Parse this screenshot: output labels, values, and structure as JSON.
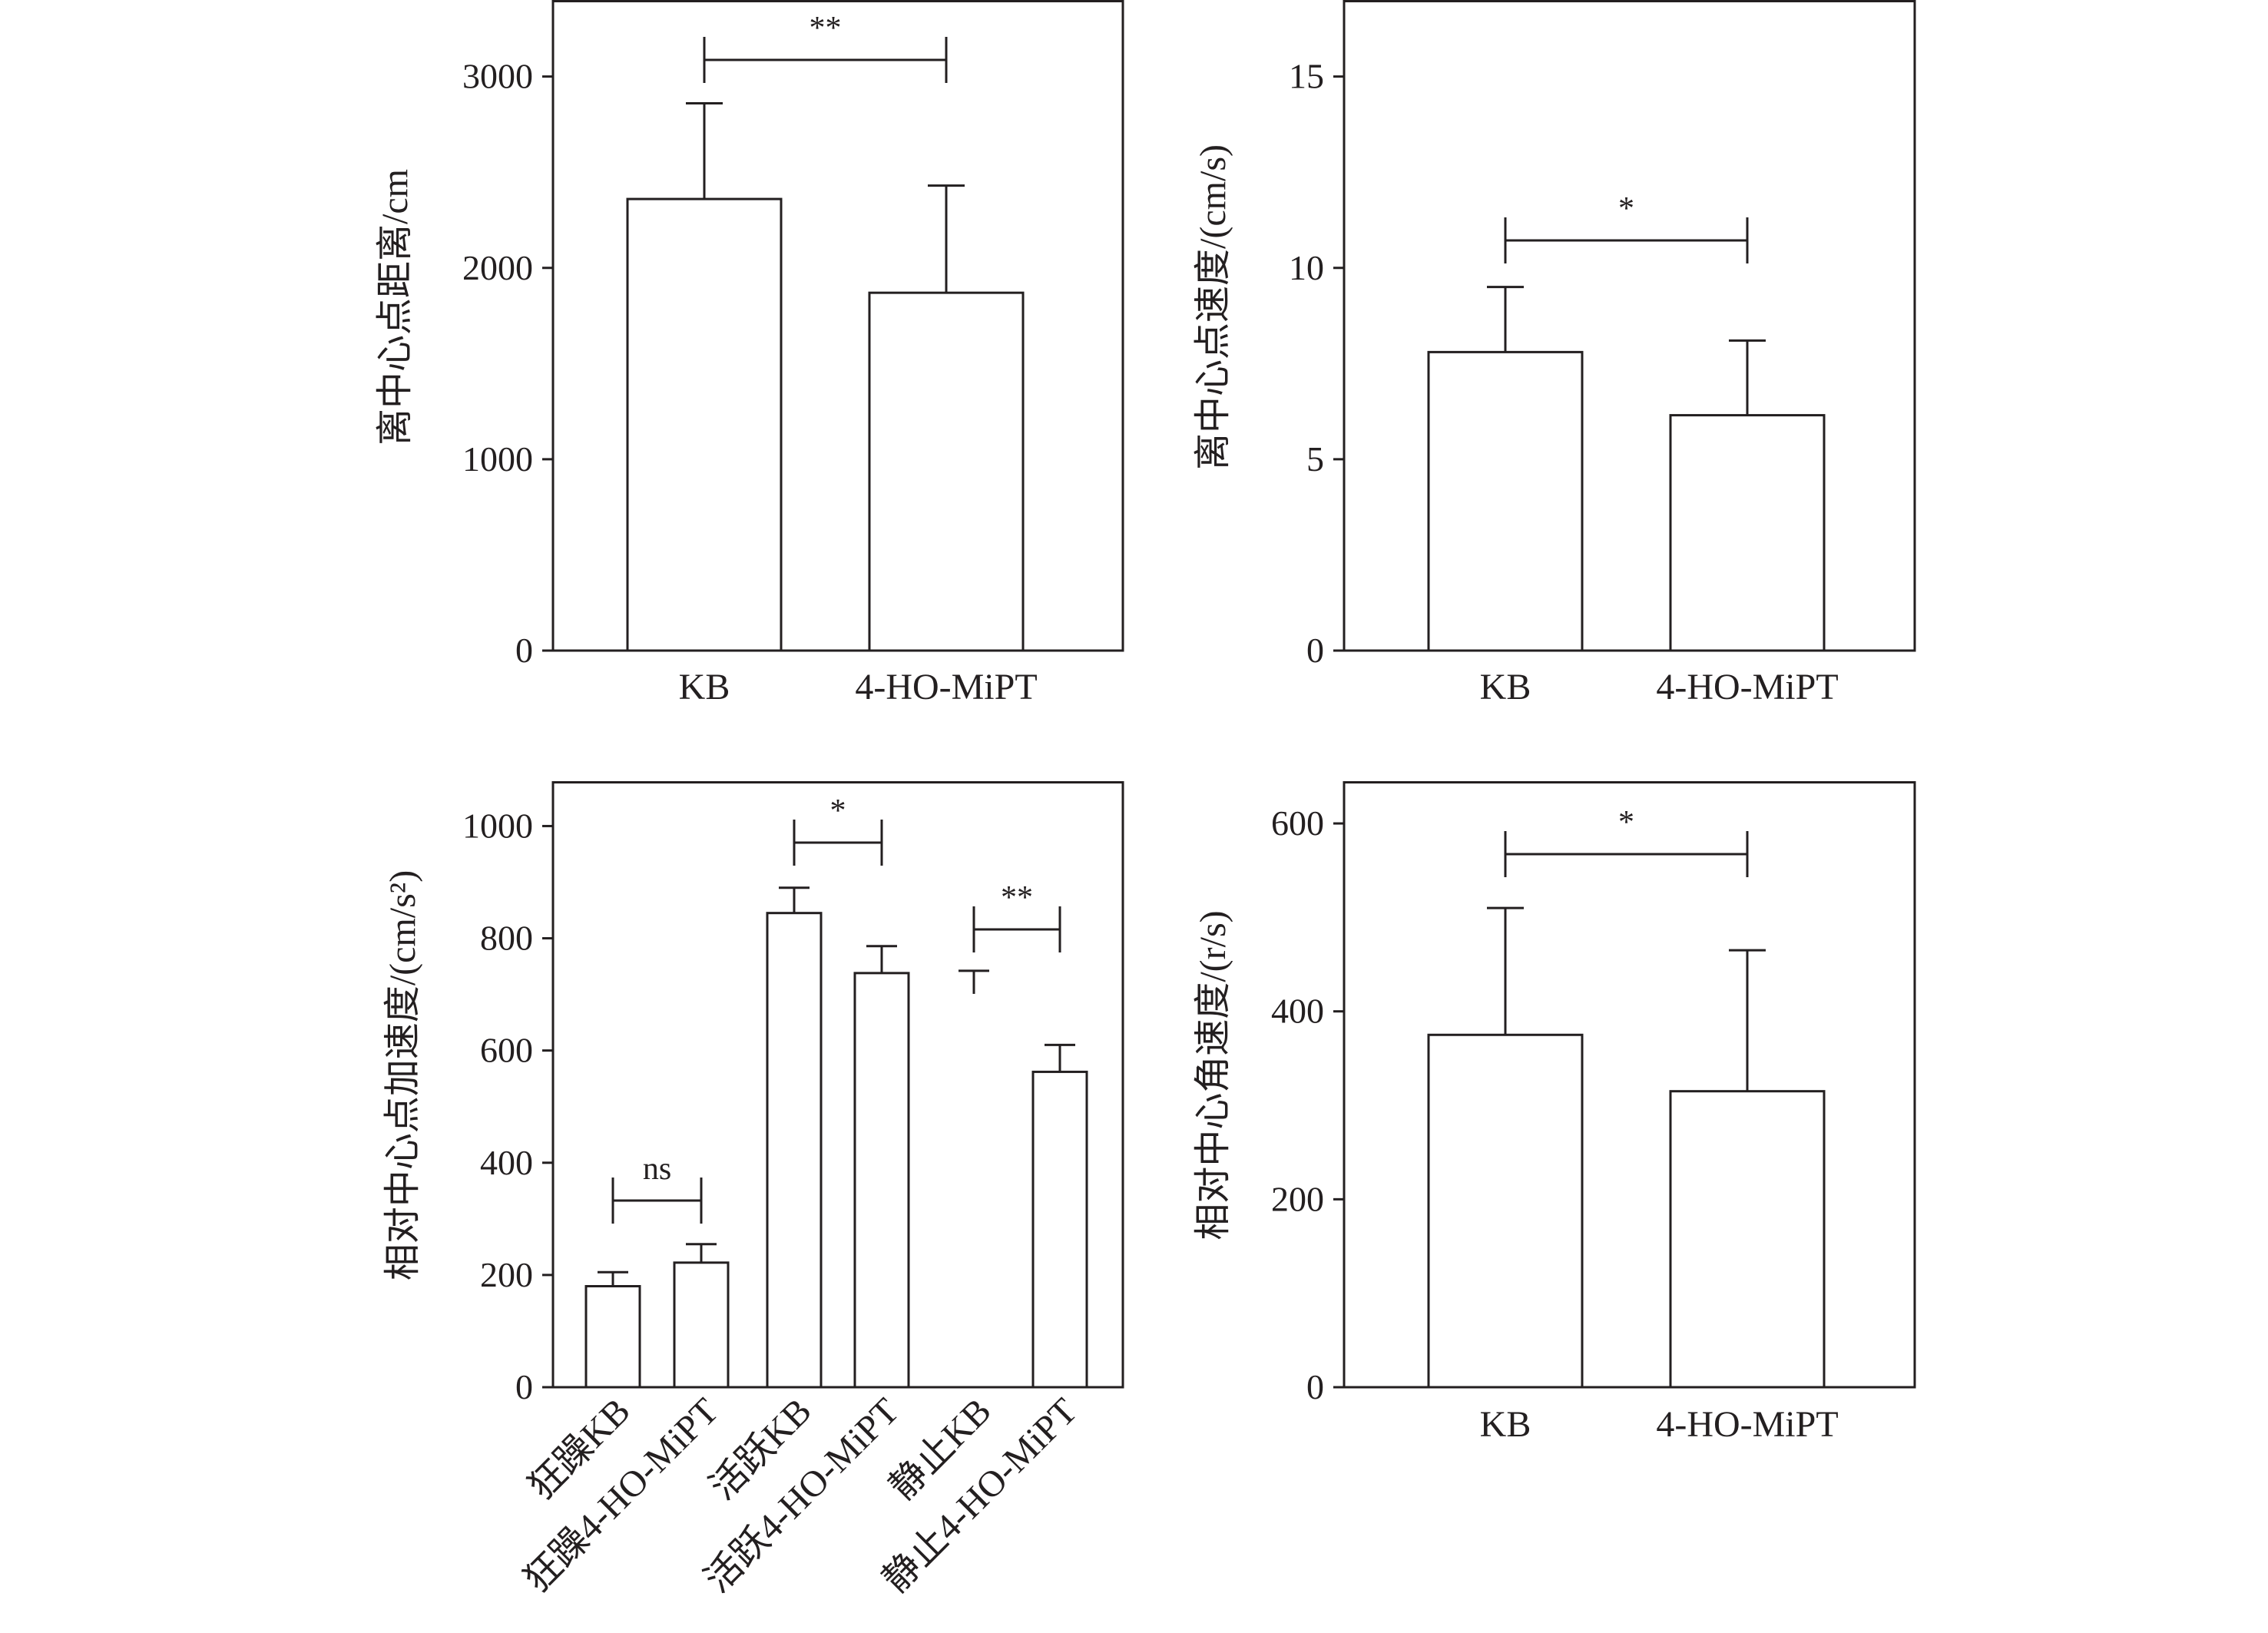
{
  "chart_data": [
    {
      "type": "bar",
      "categories": [
        "KB",
        "4-HO-MiPT"
      ],
      "values": [
        2360,
        1870
      ],
      "errors": [
        500,
        560
      ],
      "ylabel": "离中心点距离/cm",
      "ylim": [
        0,
        3400
      ],
      "yticks": [
        0,
        1000,
        2000,
        3000
      ],
      "significance": [
        {
          "from": 0,
          "to": 1,
          "label": "**"
        }
      ]
    },
    {
      "type": "bar",
      "categories": [
        "KB",
        "4-HO-MiPT"
      ],
      "values": [
        7.8,
        6.15
      ],
      "errors": [
        1.7,
        1.95
      ],
      "ylabel": "离中心点速度/(cm/s)",
      "ylim": [
        0,
        17
      ],
      "yticks": [
        0,
        5,
        10,
        15
      ],
      "significance": [
        {
          "from": 0,
          "to": 1,
          "label": "*"
        }
      ]
    },
    {
      "type": "bar",
      "categories": [
        "狂躁KB",
        "狂躁4-HO-MiPT",
        "活跃KB",
        "活跃4-HO-MiPT",
        "静止KB",
        "静止4-HO-MiPT"
      ],
      "values": [
        180,
        222,
        845,
        738,
        null,
        562
      ],
      "errors": [
        25,
        33,
        45,
        48,
        null,
        48
      ],
      "error_marker_values": [
        null,
        null,
        null,
        null,
        742,
        null
      ],
      "ylabel": "相对中心点加速度/(cm/s²)",
      "ylim": [
        0,
        1080
      ],
      "yticks": [
        0,
        200,
        400,
        600,
        800,
        1000
      ],
      "significance": [
        {
          "from": 0,
          "to": 1,
          "label": "ns"
        },
        {
          "from": 2,
          "to": 3,
          "label": "*"
        },
        {
          "from": 4,
          "to": 5,
          "label": "**"
        }
      ]
    },
    {
      "type": "bar",
      "categories": [
        "KB",
        "4-HO-MiPT"
      ],
      "values": [
        375,
        315
      ],
      "errors": [
        135,
        150
      ],
      "ylabel": "相对中心角速度/(r/s)",
      "ylim": [
        0,
        645
      ],
      "yticks": [
        0,
        200,
        400,
        600
      ],
      "significance": [
        {
          "from": 0,
          "to": 1,
          "label": "*"
        }
      ]
    }
  ]
}
